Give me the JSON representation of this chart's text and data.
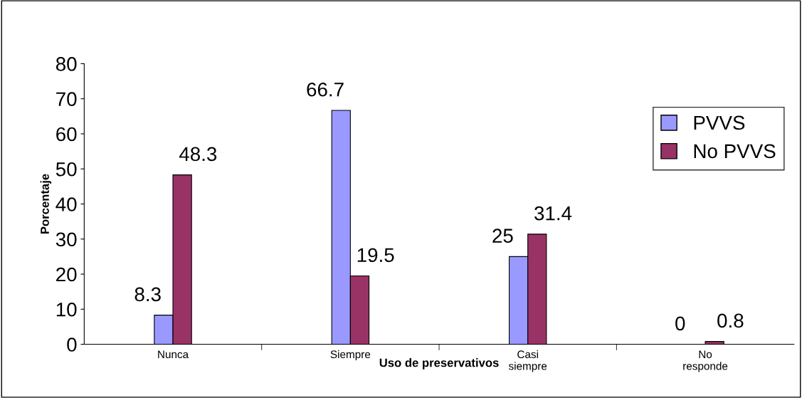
{
  "chart_data": {
    "type": "bar",
    "xlabel": "Uso de preservativos",
    "ylabel": "Porcentaje",
    "categories": [
      "Nunca",
      "Siempre",
      "Casi\nsiempre",
      "No\nresponde"
    ],
    "series": [
      {
        "name": "PVVS",
        "color": "#9999ff",
        "values": [
          8.3,
          66.7,
          25,
          0
        ]
      },
      {
        "name": "No PVVS",
        "color": "#993366",
        "values": [
          48.3,
          19.5,
          31.4,
          0.8
        ]
      }
    ],
    "ylim": [
      0,
      80
    ],
    "yticks": [
      0,
      10,
      20,
      30,
      40,
      50,
      60,
      70,
      80
    ],
    "data_labels": true,
    "legend": "top right",
    "grid": false
  }
}
